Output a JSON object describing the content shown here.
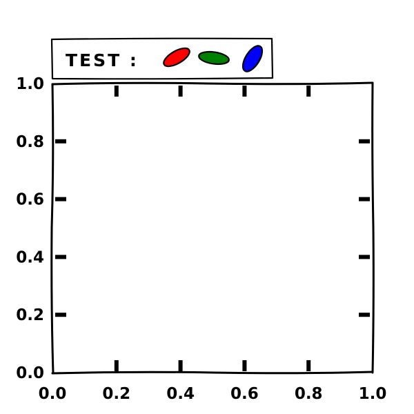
{
  "chart_data": {
    "type": "scatter",
    "style": "xkcd hand-drawn",
    "title": "",
    "xlabel": "",
    "ylabel": "",
    "xlim": [
      0.0,
      1.0
    ],
    "ylim": [
      0.0,
      1.0
    ],
    "grid": false,
    "x_ticks": [
      "0.0",
      "0.2",
      "0.4",
      "0.6",
      "0.8",
      "1.0"
    ],
    "y_ticks": [
      "0.0",
      "0.2",
      "0.4",
      "0.6",
      "0.8",
      "1.0"
    ],
    "x_tick_values": [
      0.0,
      0.2,
      0.4,
      0.6,
      0.8,
      1.0
    ],
    "y_tick_values": [
      0.0,
      0.2,
      0.4,
      0.6,
      0.8,
      1.0
    ],
    "legend": {
      "placement": "above plot, top-left",
      "label": "TEST :",
      "markers": [
        {
          "shape": "ellipse",
          "color": "#ff0000",
          "orientation": "tilted up-right"
        },
        {
          "shape": "ellipse",
          "color": "#008000",
          "orientation": "horizontal"
        },
        {
          "shape": "ellipse",
          "color": "#0000ff",
          "orientation": "steep up-right"
        }
      ]
    },
    "series": []
  }
}
